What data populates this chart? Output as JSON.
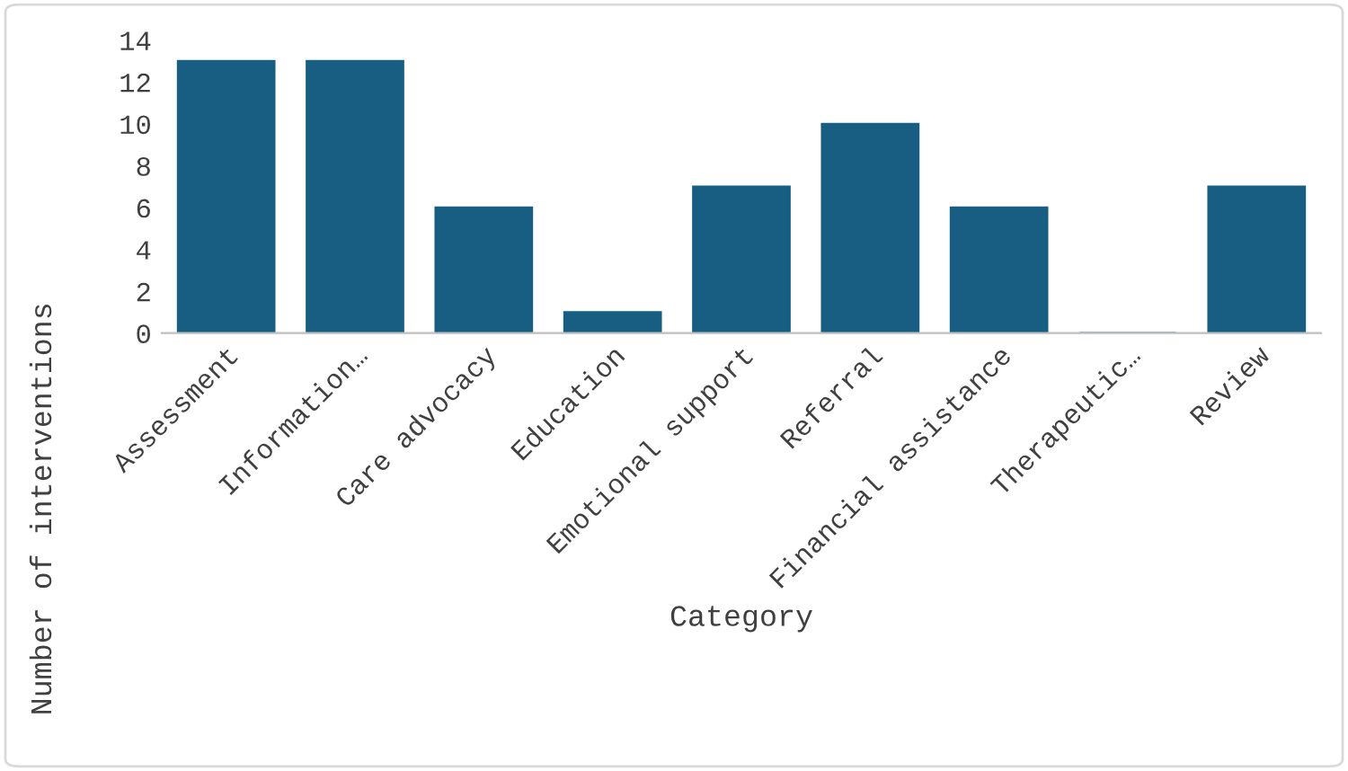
{
  "chart_data": {
    "type": "bar",
    "xlabel": "Category",
    "ylabel": "Number of interventions",
    "categories": [
      "Assessment",
      "Information…",
      "Care advocacy",
      "Education",
      "Emotional support",
      "Referral",
      "Financial assistance",
      "Therapeutic…",
      "Review"
    ],
    "values": [
      13,
      13,
      6,
      1,
      7,
      10,
      6,
      0,
      7
    ],
    "color": "#175e82",
    "ylim": [
      0,
      14
    ],
    "yticks": [
      0,
      2,
      4,
      6,
      8,
      10,
      12,
      14
    ],
    "grid": false,
    "legend": false
  }
}
